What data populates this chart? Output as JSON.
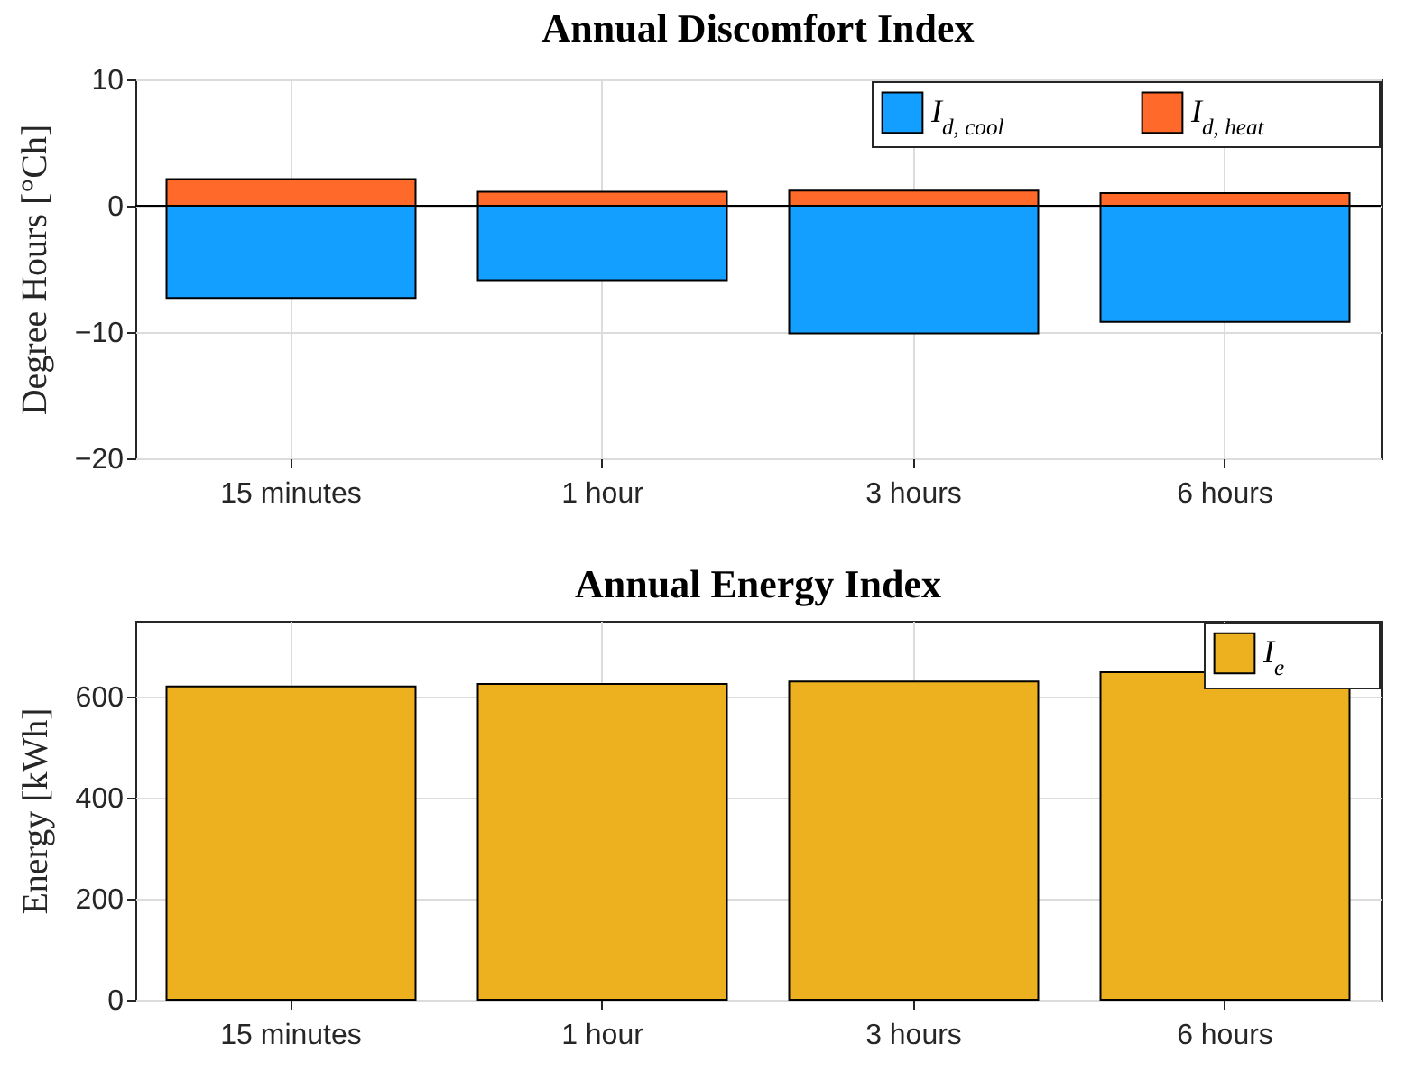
{
  "chart_data": [
    {
      "type": "bar",
      "title": "Annual Discomfort Index",
      "ylabel": "Degree Hours [°Ch]",
      "categories": [
        "15 minutes",
        "1 hour",
        "3 hours",
        "6 hours"
      ],
      "stacked": true,
      "series": [
        {
          "name": "I$_{d, cool}$",
          "color": "#139fff",
          "values": [
            -7.3,
            -5.9,
            -10.1,
            -9.2
          ]
        },
        {
          "name": "I$_{d, heat}$",
          "color": "#ff6929",
          "values": [
            2.1,
            1.1,
            1.2,
            1.0
          ]
        }
      ],
      "ylim": [
        -20,
        10
      ],
      "yticks": [
        -20,
        -10,
        0,
        10
      ],
      "grid": true,
      "legend": "top right",
      "ref_lines": [
        {
          "axis": "y",
          "value": 0
        }
      ]
    },
    {
      "type": "bar",
      "title": "Annual Energy Index",
      "ylabel": "Energy [kWh]",
      "categories": [
        "15 minutes",
        "1 hour",
        "3 hours",
        "6 hours"
      ],
      "series": [
        {
          "name": "I$_{e}$",
          "color": "#edb120",
          "values": [
            620,
            625,
            630,
            648
          ]
        }
      ],
      "ylim": [
        0,
        750
      ],
      "yticks": [
        0,
        200,
        400,
        600
      ],
      "grid": true,
      "legend": "top right"
    }
  ]
}
